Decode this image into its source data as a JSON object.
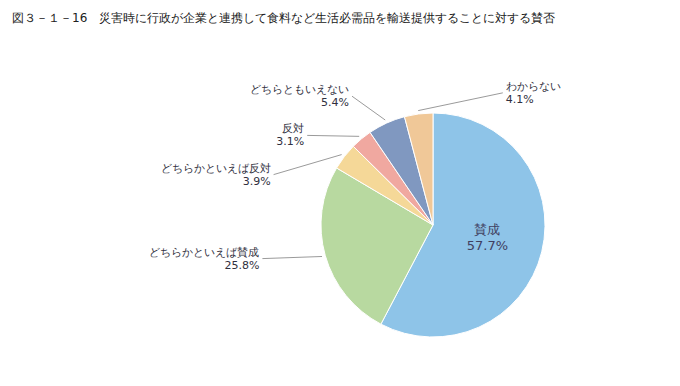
{
  "chart_data": {
    "type": "pie",
    "title": "図３－１－16",
    "subtitle": "災害時に行政が企業と連携して食料など生活必需品を輸送提供することに対する賛否",
    "categories": [
      "賛成",
      "どちらかといえば賛成",
      "どちらかといえば反対",
      "反対",
      "どちらともいえない",
      "わからない"
    ],
    "values": [
      57.7,
      25.8,
      3.9,
      3.1,
      5.4,
      4.1
    ],
    "value_labels": [
      "57.7%",
      "25.8%",
      "3.9%",
      "3.1%",
      "5.4%",
      "4.1%"
    ],
    "colors": [
      "#8ec4e8",
      "#b8d9a0",
      "#f5d898",
      "#f0a8a0",
      "#8098c0",
      "#f0c898"
    ],
    "data_labels": true
  }
}
